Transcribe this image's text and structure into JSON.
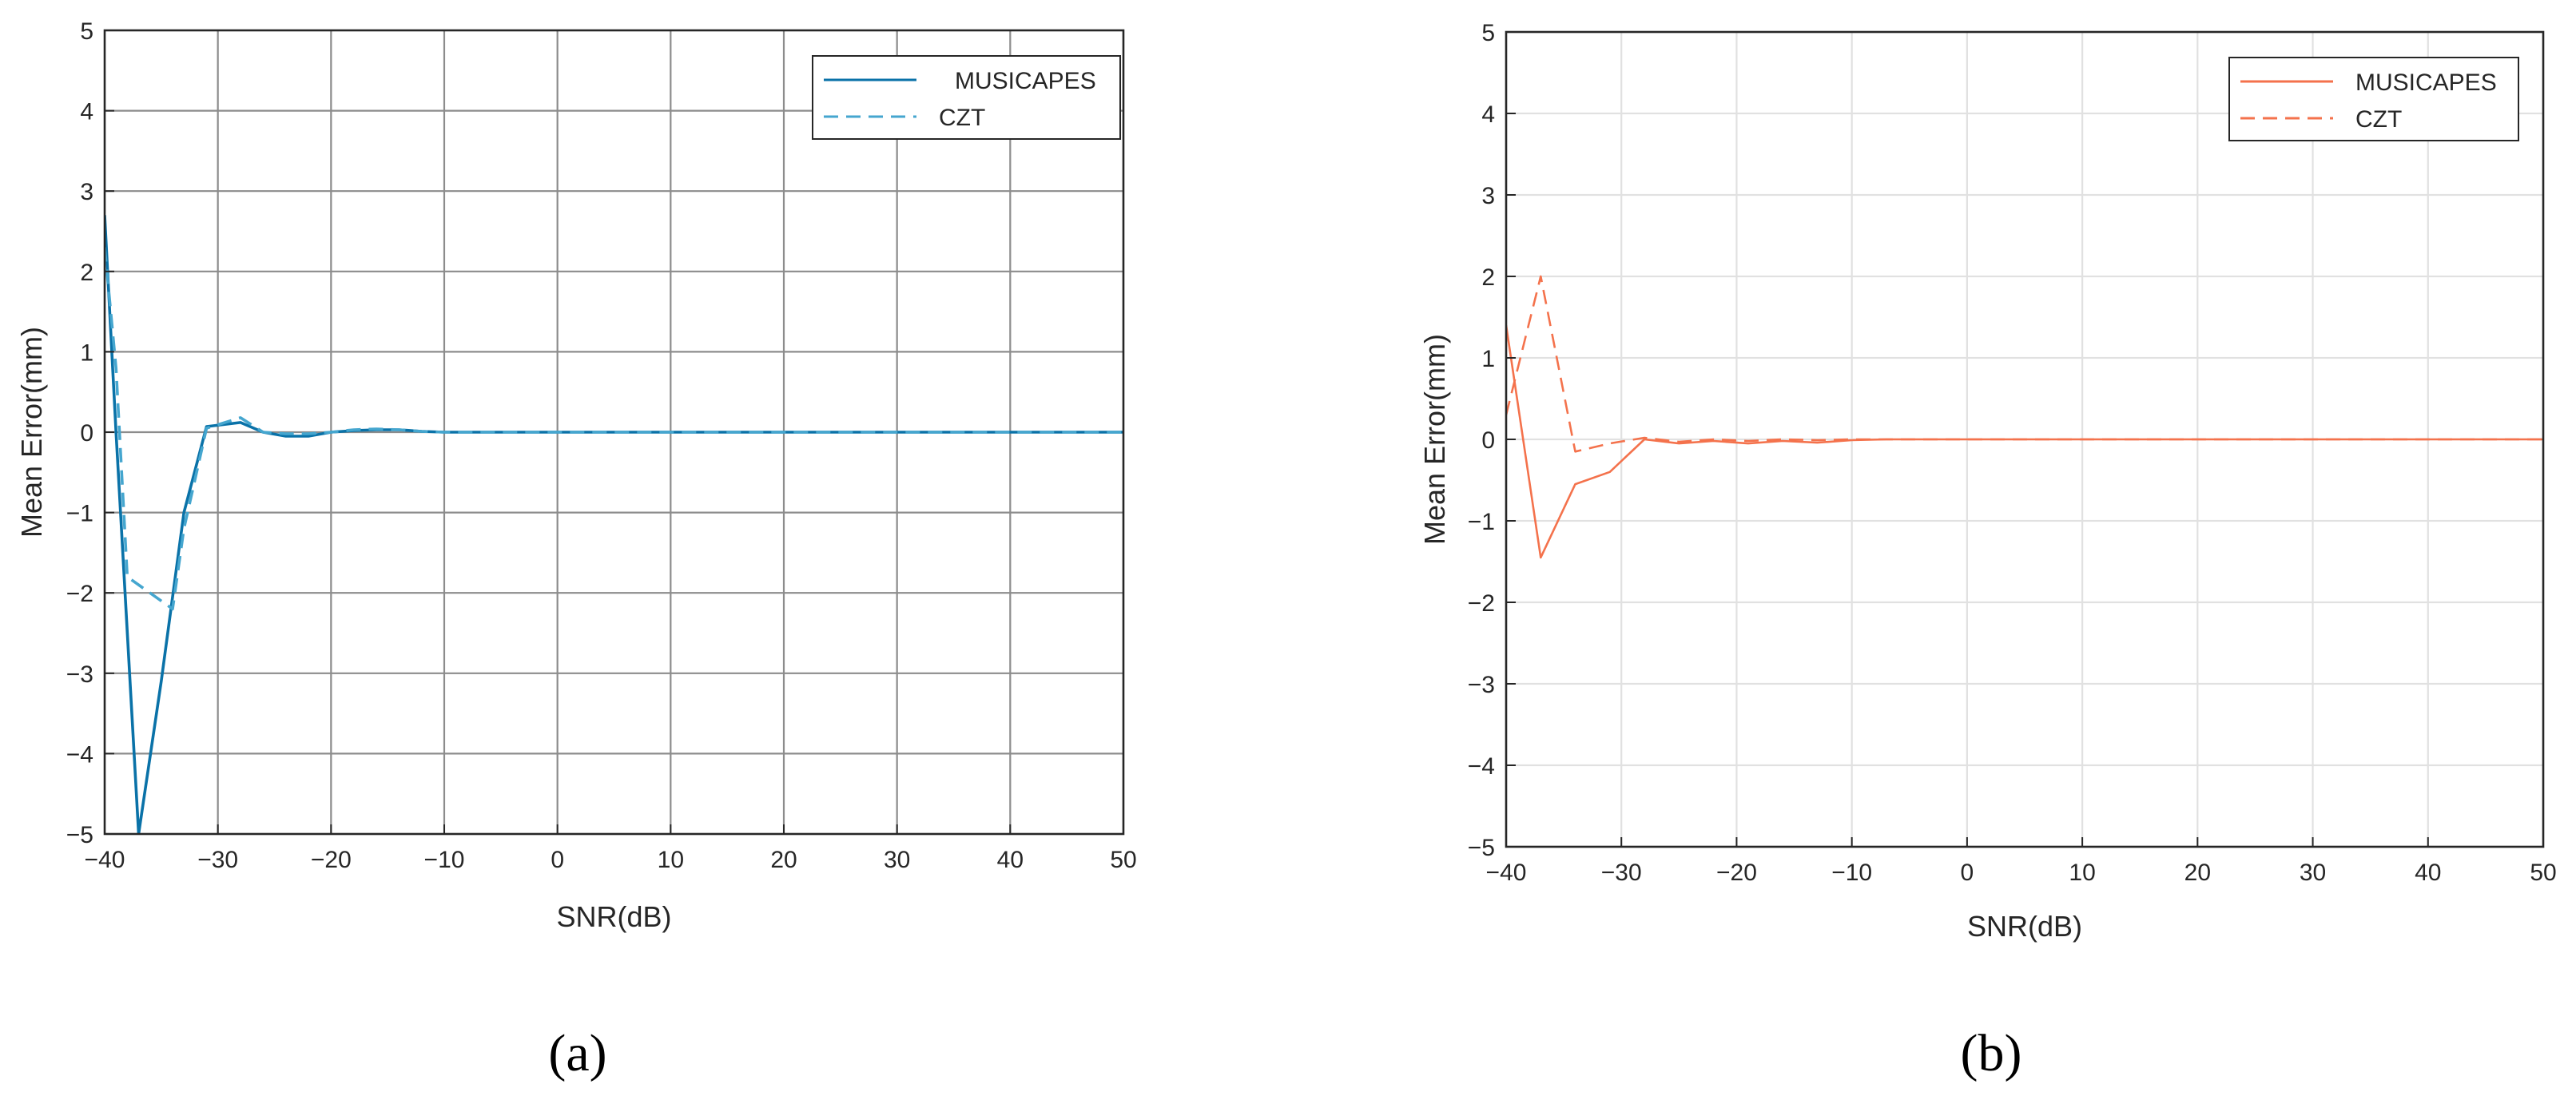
{
  "panel_labels": [
    "(a)",
    "(b)"
  ],
  "chart_data": [
    {
      "type": "line",
      "panel": "(a)",
      "xlabel": "SNR(dB)",
      "ylabel": "Mean Error(mm)",
      "xlim": [
        -40,
        50
      ],
      "ylim": [
        -5,
        5
      ],
      "xticks": [
        -40,
        -30,
        -20,
        -10,
        0,
        10,
        20,
        30,
        40,
        50
      ],
      "yticks": [
        -5,
        -4,
        -3,
        -2,
        -1,
        0,
        1,
        2,
        3,
        4,
        5
      ],
      "grid": "major, strong",
      "legend_position": "top-right",
      "colors": {
        "musicapes": "#0a72a8",
        "czt": "#45a6cf",
        "grid": "#8c8c8c"
      },
      "series": [
        {
          "name": "MUSICAPES",
          "style": "solid",
          "x": [
            -40,
            -39,
            -37,
            -35,
            -33,
            -31,
            -28,
            -26,
            -24,
            -22,
            -20,
            -18,
            -16,
            -14,
            -12,
            -10,
            -8,
            -6,
            0,
            10,
            20,
            30,
            40,
            50
          ],
          "y": [
            2.7,
            0.0,
            -5.0,
            -3.1,
            -1.0,
            0.07,
            0.12,
            0.0,
            -0.05,
            -0.05,
            0.0,
            0.02,
            0.03,
            0.03,
            0.01,
            0.0,
            0.0,
            0.0,
            0.0,
            0.0,
            0.0,
            0.0,
            0.0,
            0.0
          ]
        },
        {
          "name": "CZT",
          "style": "dashed",
          "x": [
            -40,
            -39,
            -38,
            -36,
            -34,
            -33,
            -31,
            -28,
            -26,
            -24,
            -22,
            -20,
            -18,
            -16,
            -14,
            -12,
            -10,
            -8,
            0,
            10,
            20,
            30,
            40,
            50
          ],
          "y": [
            2.3,
            0.8,
            -1.8,
            -2.0,
            -2.2,
            -1.2,
            0.05,
            0.18,
            0.0,
            -0.02,
            -0.02,
            0.0,
            0.03,
            0.04,
            0.03,
            0.01,
            0.0,
            0.0,
            0.0,
            0.0,
            0.0,
            0.0,
            0.0,
            0.0
          ]
        }
      ]
    },
    {
      "type": "line",
      "panel": "(b)",
      "xlabel": "SNR(dB)",
      "ylabel": "Mean Error(mm)",
      "xlim": [
        -40,
        50
      ],
      "ylim": [
        -5,
        5
      ],
      "xticks": [
        -40,
        -30,
        -20,
        -10,
        0,
        10,
        20,
        30,
        40,
        50
      ],
      "yticks": [
        -5,
        -4,
        -3,
        -2,
        -1,
        0,
        1,
        2,
        3,
        4,
        5
      ],
      "grid": "major, light",
      "legend_position": "top-right",
      "colors": {
        "musicapes": "#f4724c",
        "czt": "#f4724c",
        "grid": "#e1e1e1"
      },
      "series": [
        {
          "name": "MUSICAPES",
          "style": "solid",
          "x": [
            -40,
            -37,
            -34,
            -31,
            -28,
            -25,
            -22,
            -19,
            -16,
            -13,
            -10,
            -7,
            -4,
            0,
            10,
            20,
            30,
            40,
            50
          ],
          "y": [
            1.4,
            -1.45,
            -0.55,
            -0.4,
            0.0,
            -0.05,
            -0.02,
            -0.05,
            -0.02,
            -0.04,
            -0.01,
            0.0,
            0.0,
            0.0,
            0.0,
            0.0,
            0.0,
            0.0,
            0.0
          ]
        },
        {
          "name": "CZT",
          "style": "dashed",
          "x": [
            -40,
            -37,
            -34,
            -31,
            -28,
            -25,
            -22,
            -19,
            -16,
            -13,
            -10,
            -7,
            0,
            10,
            20,
            30,
            40,
            50
          ],
          "y": [
            0.3,
            2.0,
            -0.15,
            -0.05,
            0.02,
            -0.03,
            0.0,
            -0.02,
            0.0,
            -0.01,
            0.0,
            0.0,
            0.0,
            0.0,
            0.0,
            0.0,
            0.0,
            0.0
          ]
        }
      ]
    }
  ]
}
